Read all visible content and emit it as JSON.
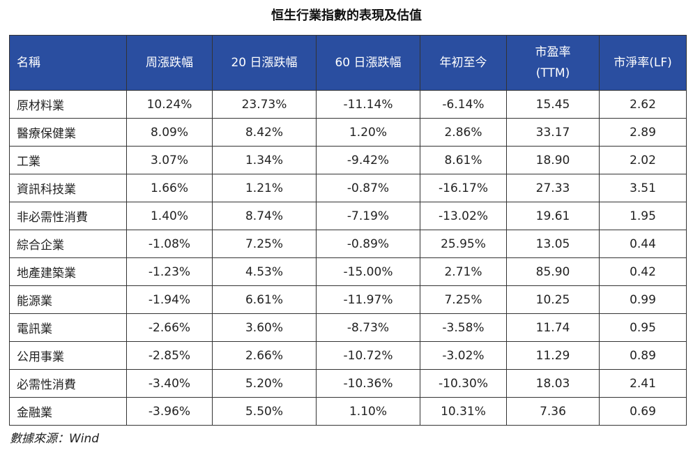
{
  "title": "恒生行業指數的表現及估值",
  "table": {
    "headers": [
      {
        "line1": "名稱",
        "line2": ""
      },
      {
        "line1": "周漲跌幅",
        "line2": ""
      },
      {
        "line1": "20 日漲跌幅",
        "line2": ""
      },
      {
        "line1": "60 日漲跌幅",
        "line2": ""
      },
      {
        "line1": "年初至今",
        "line2": ""
      },
      {
        "line1": "市盈率",
        "line2": "(TTM)"
      },
      {
        "line1": "市淨率(LF)",
        "line2": ""
      }
    ],
    "rows": [
      [
        "原材料業",
        "10.24%",
        "23.73%",
        "-11.14%",
        "-6.14%",
        "15.45",
        "2.62"
      ],
      [
        "醫療保健業",
        "8.09%",
        "8.42%",
        "1.20%",
        "2.86%",
        "33.17",
        "2.89"
      ],
      [
        "工業",
        "3.07%",
        "1.34%",
        "-9.42%",
        "8.61%",
        "18.90",
        "2.02"
      ],
      [
        "資訊科技業",
        "1.66%",
        "1.21%",
        "-0.87%",
        "-16.17%",
        "27.33",
        "3.51"
      ],
      [
        "非必需性消費",
        "1.40%",
        "8.74%",
        "-7.19%",
        "-13.02%",
        "19.61",
        "1.95"
      ],
      [
        "綜合企業",
        "-1.08%",
        "7.25%",
        "-0.89%",
        "25.95%",
        "13.05",
        "0.44"
      ],
      [
        "地產建築業",
        "-1.23%",
        "4.53%",
        "-15.00%",
        "2.71%",
        "85.90",
        "0.42"
      ],
      [
        "能源業",
        "-1.94%",
        "6.61%",
        "-11.97%",
        "7.25%",
        "10.25",
        "0.99"
      ],
      [
        "電訊業",
        "-2.66%",
        "3.60%",
        "-8.73%",
        "-3.58%",
        "11.74",
        "0.95"
      ],
      [
        "公用事業",
        "-2.85%",
        "2.66%",
        "-10.72%",
        "-3.02%",
        "11.29",
        "0.89"
      ],
      [
        "必需性消費",
        "-3.40%",
        "5.20%",
        "-10.36%",
        "-10.30%",
        "18.03",
        "2.41"
      ],
      [
        "金融業",
        "-3.96%",
        "5.50%",
        "1.10%",
        "10.31%",
        "7.36",
        "0.69"
      ]
    ]
  },
  "source": "數據來源：Wind",
  "colors": {
    "header_bg": "#2a4ea0",
    "header_text": "#ffffff",
    "border": "#333333"
  }
}
